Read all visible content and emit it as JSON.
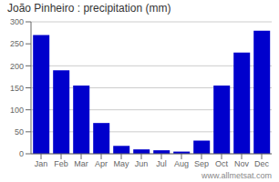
{
  "chart_data": {
    "type": "bar",
    "title": "João Pinheiro : precipitation (mm)",
    "categories": [
      "Jan",
      "Feb",
      "Mar",
      "Apr",
      "May",
      "Jun",
      "Jul",
      "Aug",
      "Sep",
      "Oct",
      "Nov",
      "Dec"
    ],
    "values": [
      270,
      190,
      155,
      70,
      18,
      10,
      8,
      5,
      30,
      155,
      230,
      280
    ],
    "color": "#0000cc",
    "ylim": [
      0,
      300
    ],
    "yticks": [
      0,
      50,
      100,
      150,
      200,
      250,
      300
    ],
    "grid": true,
    "annotations": [
      "www.allmetsat.com"
    ]
  }
}
